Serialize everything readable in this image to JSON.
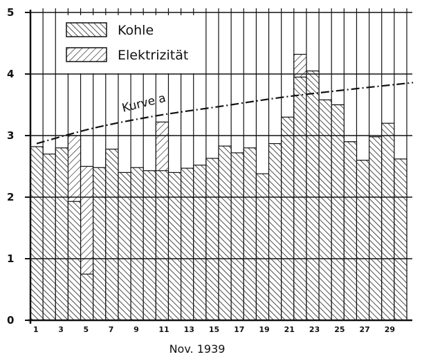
{
  "chart_data": {
    "type": "bar",
    "stacked": false,
    "xlabel": "Nov. 1939",
    "ylim": [
      0,
      5
    ],
    "yticks": [
      "0",
      "1",
      "2",
      "3",
      "4",
      "5"
    ],
    "categories": [
      "1",
      "2",
      "3",
      "4",
      "5",
      "6",
      "7",
      "8",
      "9",
      "10",
      "11",
      "12",
      "13",
      "14",
      "15",
      "16",
      "17",
      "18",
      "19",
      "20",
      "21",
      "22",
      "23",
      "24",
      "25",
      "26",
      "27",
      "28",
      "29",
      "30"
    ],
    "xtick_labels": [
      "1",
      "3",
      "5",
      "7",
      "9",
      "11",
      "13",
      "15",
      "17",
      "19",
      "21",
      "23",
      "25",
      "27",
      "29"
    ],
    "grid": true,
    "legend_position": "top-left",
    "series": [
      {
        "name": "Kohle",
        "hatch": "backslash",
        "values": [
          2.82,
          2.7,
          2.8,
          1.93,
          0.75,
          2.48,
          2.78,
          2.4,
          2.48,
          2.43,
          2.43,
          2.4,
          2.47,
          2.52,
          2.63,
          2.83,
          2.72,
          2.8,
          2.38,
          2.87,
          3.3,
          3.95,
          4.05,
          3.58,
          3.5,
          2.9,
          2.6,
          2.98,
          3.2,
          2.62
        ]
      },
      {
        "name": "Elektrizität",
        "hatch": "slash",
        "values": [
          null,
          null,
          null,
          3.0,
          2.5,
          null,
          null,
          null,
          null,
          null,
          3.22,
          null,
          null,
          null,
          null,
          null,
          null,
          null,
          null,
          null,
          null,
          4.32,
          null,
          null,
          3.5,
          2.9,
          null,
          null,
          null,
          null
        ]
      }
    ],
    "annotations": [
      {
        "text": "Kurve a",
        "type": "dash-dot-curve",
        "points": [
          [
            0.5,
            2.87
          ],
          [
            5,
            3.12
          ],
          [
            10,
            3.32
          ],
          [
            15,
            3.47
          ],
          [
            20,
            3.62
          ],
          [
            25,
            3.74
          ],
          [
            30.5,
            3.86
          ]
        ]
      }
    ]
  }
}
